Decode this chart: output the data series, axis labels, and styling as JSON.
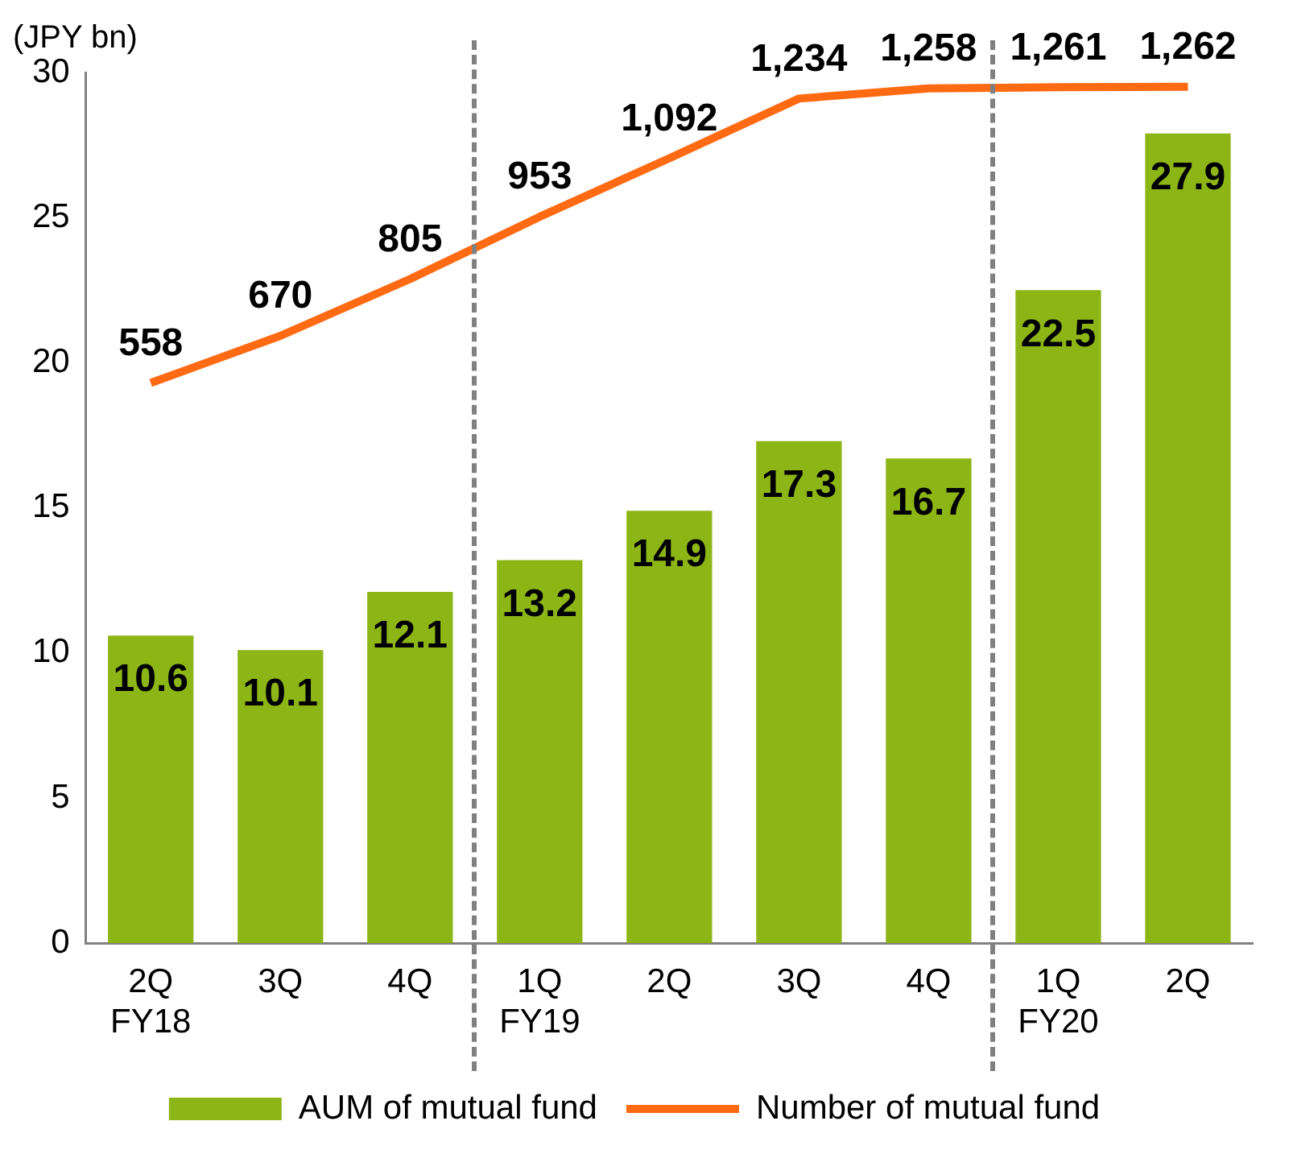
{
  "chart_data": {
    "type": "bar",
    "ylabel": "(JPY bn)",
    "categories": [
      "2Q\nFY18",
      "3Q",
      "4Q",
      "1Q\nFY19",
      "2Q",
      "3Q",
      "4Q",
      "1Q\nFY20",
      "2Q"
    ],
    "series": [
      {
        "name": "AUM of mutual fund",
        "color": "#8db516",
        "values": [
          10.6,
          10.1,
          12.1,
          13.2,
          14.9,
          17.3,
          16.7,
          22.5,
          27.9
        ]
      },
      {
        "name": "Number of mutual fund",
        "type": "line",
        "axis": "y2",
        "color": "#ff6a13",
        "values": [
          558,
          670,
          805,
          953,
          1092,
          1234,
          1258,
          1261,
          1262
        ],
        "value_labels": [
          "558",
          "670",
          "805",
          "953",
          "1,092",
          "1,234",
          "1,258",
          "1,261",
          "1,262"
        ]
      }
    ],
    "ylim": [
      0,
      30
    ],
    "yticks": [
      0,
      5,
      10,
      15,
      20,
      25,
      30
    ],
    "y2lim": [
      -774,
      1296
    ],
    "data_labels": true,
    "grid": false,
    "legend": "bottom",
    "marker": "none"
  }
}
